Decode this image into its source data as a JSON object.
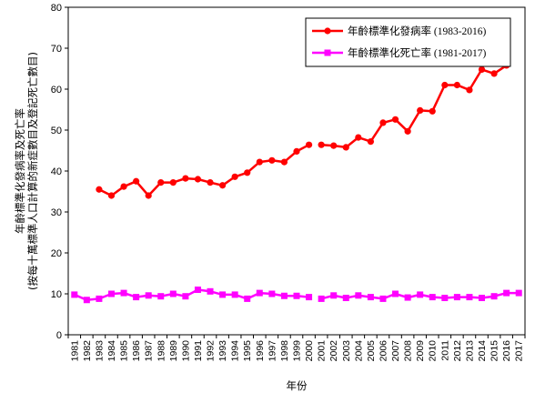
{
  "chart_data": {
    "type": "line",
    "xlabel": "年份",
    "ylabel_lines": [
      "年齡標準化發病率及死亡率",
      "(按每十萬標準人口計算的新症數目及登記死亡數目)"
    ],
    "ylim": [
      0,
      80
    ],
    "yticks": [
      0,
      10,
      20,
      30,
      40,
      50,
      60,
      70,
      80
    ],
    "categories": [
      "1981",
      "1982",
      "1983",
      "1984",
      "1985",
      "1986",
      "1987",
      "1988",
      "1989",
      "1990",
      "1991",
      "1992",
      "1993",
      "1994",
      "1995",
      "1996",
      "1997",
      "1998",
      "1999",
      "2000",
      "2001",
      "2002",
      "2003",
      "2004",
      "2005",
      "2006",
      "2007",
      "2008",
      "2009",
      "2010",
      "2011",
      "2012",
      "2013",
      "2014",
      "2015",
      "2016",
      "2017"
    ],
    "grid": false,
    "legend_position": "top-right",
    "series": [
      {
        "name": "年齡標準化發病率 (1983-2016)",
        "color": "#ff0000",
        "marker": "circle",
        "x": [
          1983,
          1984,
          1985,
          1986,
          1987,
          1988,
          1989,
          1990,
          1991,
          1992,
          1993,
          1994,
          1995,
          1996,
          1997,
          1998,
          1999,
          2000,
          2001,
          2002,
          2003,
          2004,
          2005,
          2006,
          2007,
          2008,
          2009,
          2010,
          2011,
          2012,
          2013,
          2014,
          2015,
          2016
        ],
        "values": [
          35.5,
          34.0,
          36.2,
          37.5,
          34.0,
          37.2,
          37.2,
          38.2,
          38.0,
          37.2,
          36.5,
          38.6,
          39.6,
          42.2,
          42.6,
          42.2,
          44.8,
          46.4,
          46.4,
          46.2,
          45.8,
          48.2,
          47.2,
          51.8,
          52.6,
          49.7,
          54.8,
          54.6,
          61.0,
          61.0,
          59.8,
          64.8,
          63.8,
          65.8
        ],
        "segments_break_after": [
          2000
        ]
      },
      {
        "name": "年齡標準化死亡率 (1981-2017)",
        "color": "#ff00ff",
        "marker": "square",
        "x": [
          1981,
          1982,
          1983,
          1984,
          1985,
          1986,
          1987,
          1988,
          1989,
          1990,
          1991,
          1992,
          1993,
          1994,
          1995,
          1996,
          1997,
          1998,
          1999,
          2000,
          2001,
          2002,
          2003,
          2004,
          2005,
          2006,
          2007,
          2008,
          2009,
          2010,
          2011,
          2012,
          2013,
          2014,
          2015,
          2016,
          2017
        ],
        "values": [
          9.8,
          8.5,
          8.8,
          10.0,
          10.2,
          9.2,
          9.6,
          9.4,
          10.0,
          9.4,
          11.0,
          10.6,
          9.8,
          9.8,
          8.8,
          10.2,
          10.0,
          9.5,
          9.5,
          9.2,
          8.8,
          9.6,
          9.0,
          9.6,
          9.2,
          8.8,
          10.0,
          9.1,
          9.8,
          9.2,
          9.0,
          9.2,
          9.2,
          9.0,
          9.4,
          10.2,
          10.2
        ],
        "segments_break_after": [
          2000
        ]
      }
    ]
  }
}
